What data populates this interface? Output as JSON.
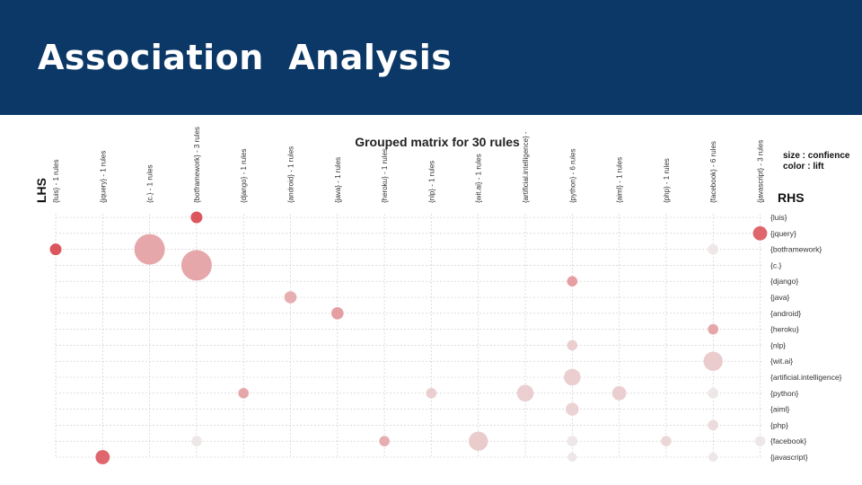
{
  "header": {
    "title": "Association  Analysis",
    "background": "#0b3866"
  },
  "chart_data": {
    "type": "scatter",
    "title": "Grouped matrix for 30 rules",
    "lhs_axis_title": "LHS",
    "rhs_axis_title": "RHS",
    "legend": [
      "size : confience",
      "color : lift"
    ],
    "lhs": [
      "{luis} - 1 rules",
      "{jquery} - 1 rules",
      "{c.} - 1 rules",
      "{botframework} - 3 rules",
      "{django} - 1 rules",
      "{android} - 1 rules",
      "{java} - 1 rules",
      "{heroku} - 1 rules",
      "{nlp} - 1 rules",
      "{wit.ai} - 1 rules",
      "{artificial.intelligence} -",
      "{python} - 6 rules",
      "{aiml} - 1 rules",
      "{php} - 1 rules",
      "{facebook} - 6 rules",
      "{javascript} - 3 rules"
    ],
    "rhs": [
      "{luis}",
      "{jquery}",
      "{botframework}",
      "{c.}",
      "{django}",
      "{java}",
      "{android}",
      "{heroku}",
      "{nlp}",
      "{wit.ai}",
      "{artificial.intelligence}",
      "{python}",
      "{aiml}",
      "{php}",
      "{facebook}",
      "{javascript}"
    ],
    "points": [
      {
        "lhs": 3,
        "rhs": 0,
        "size": 0.25,
        "lift": 0.95
      },
      {
        "lhs": 15,
        "rhs": 1,
        "size": 0.35,
        "lift": 0.85
      },
      {
        "lhs": 0,
        "rhs": 2,
        "size": 0.25,
        "lift": 0.95
      },
      {
        "lhs": 2,
        "rhs": 2,
        "size": 1.0,
        "lift": 0.45
      },
      {
        "lhs": 14,
        "rhs": 2,
        "size": 0.2,
        "lift": 0.05
      },
      {
        "lhs": 3,
        "rhs": 3,
        "size": 1.0,
        "lift": 0.45
      },
      {
        "lhs": 11,
        "rhs": 4,
        "size": 0.2,
        "lift": 0.5
      },
      {
        "lhs": 5,
        "rhs": 5,
        "size": 0.27,
        "lift": 0.4
      },
      {
        "lhs": 6,
        "rhs": 6,
        "size": 0.27,
        "lift": 0.5
      },
      {
        "lhs": 14,
        "rhs": 7,
        "size": 0.2,
        "lift": 0.45
      },
      {
        "lhs": 11,
        "rhs": 8,
        "size": 0.2,
        "lift": 0.2
      },
      {
        "lhs": 14,
        "rhs": 9,
        "size": 0.55,
        "lift": 0.22
      },
      {
        "lhs": 11,
        "rhs": 10,
        "size": 0.45,
        "lift": 0.2
      },
      {
        "lhs": 4,
        "rhs": 11,
        "size": 0.2,
        "lift": 0.45
      },
      {
        "lhs": 8,
        "rhs": 11,
        "size": 0.2,
        "lift": 0.2
      },
      {
        "lhs": 10,
        "rhs": 11,
        "size": 0.45,
        "lift": 0.2
      },
      {
        "lhs": 12,
        "rhs": 11,
        "size": 0.35,
        "lift": 0.2
      },
      {
        "lhs": 14,
        "rhs": 11,
        "size": 0.2,
        "lift": 0.05
      },
      {
        "lhs": 11,
        "rhs": 12,
        "size": 0.3,
        "lift": 0.18
      },
      {
        "lhs": 14,
        "rhs": 13,
        "size": 0.2,
        "lift": 0.12
      },
      {
        "lhs": 3,
        "rhs": 14,
        "size": 0.2,
        "lift": 0.05
      },
      {
        "lhs": 7,
        "rhs": 14,
        "size": 0.2,
        "lift": 0.4
      },
      {
        "lhs": 9,
        "rhs": 14,
        "size": 0.55,
        "lift": 0.22
      },
      {
        "lhs": 11,
        "rhs": 14,
        "size": 0.2,
        "lift": 0.05
      },
      {
        "lhs": 13,
        "rhs": 14,
        "size": 0.2,
        "lift": 0.15
      },
      {
        "lhs": 15,
        "rhs": 14,
        "size": 0.2,
        "lift": 0.05
      },
      {
        "lhs": 1,
        "rhs": 15,
        "size": 0.35,
        "lift": 0.85
      },
      {
        "lhs": 11,
        "rhs": 15,
        "size": 0.15,
        "lift": 0.05
      },
      {
        "lhs": 14,
        "rhs": 15,
        "size": 0.15,
        "lift": 0.05
      }
    ],
    "grid": true,
    "color_high": "#d9454c",
    "color_low": "#eeeeee"
  }
}
